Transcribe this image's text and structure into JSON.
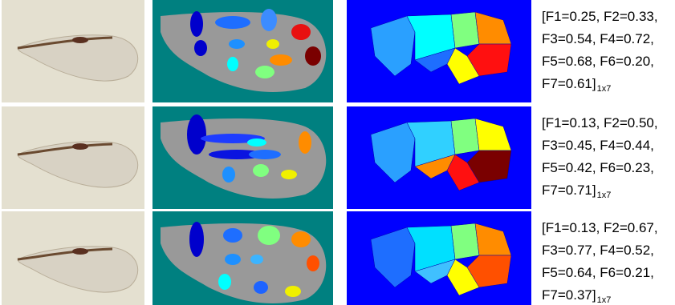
{
  "rows": [
    {
      "features": [
        "[F1=0.25, F2=0.33,",
        "F3=0.54, F4=0.72,",
        "F5=0.68, F6=0.20,",
        "F7=0.61]"
      ],
      "subscript": "1x7"
    },
    {
      "features": [
        "[F1=0.13, F2=0.50,",
        "F3=0.45, F4=0.44,",
        "F5=0.42, F6=0.23,",
        "F7=0.71]"
      ],
      "subscript": "1x7"
    },
    {
      "features": [
        "[F1=0.13, F2=0.67,",
        "F3=0.77, F4=0.52,",
        "F5=0.64, F6=0.21,",
        "F7=0.37]"
      ],
      "subscript": "1x7"
    }
  ]
}
